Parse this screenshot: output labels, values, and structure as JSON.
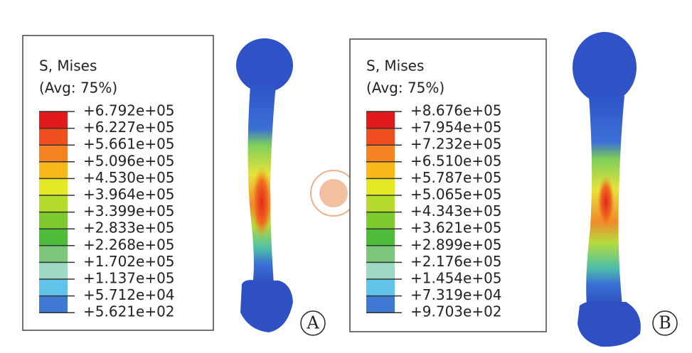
{
  "panels": [
    {
      "legend_title": "S, Mises",
      "legend_subtitle": "(Avg: 75%)",
      "levels": [
        "+6.792e+05",
        "+6.227e+05",
        "+5.661e+05",
        "+5.096e+05",
        "+4.530e+05",
        "+3.964e+05",
        "+3.399e+05",
        "+2.833e+05",
        "+2.268e+05",
        "+1.702e+05",
        "+1.137e+05",
        "+5.712e+04",
        "+5.621e+02"
      ],
      "label": "A"
    },
    {
      "legend_title": "S, Mises",
      "legend_subtitle": "(Avg: 75%)",
      "levels": [
        "+8.676e+05",
        "+7.954e+05",
        "+7.232e+05",
        "+6.510e+05",
        "+5.787e+05",
        "+5.065e+05",
        "+4.343e+05",
        "+3.621e+05",
        "+2.899e+05",
        "+2.176e+05",
        "+1.454e+05",
        "+7.319e+04",
        "+9.703e+02"
      ],
      "label": "B"
    }
  ]
}
